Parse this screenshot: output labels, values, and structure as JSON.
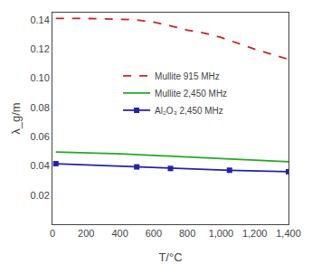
{
  "chart_data": {
    "type": "line",
    "xlabel": "T/°C",
    "ylabel": "λ_g/m",
    "series": [
      {
        "name": "Mullite 915 MHz",
        "color": "#cc2222",
        "line_style": "dashed",
        "x": [
          20,
          200,
          400,
          500,
          600,
          700,
          800,
          900,
          1000,
          1050,
          1200,
          1400
        ],
        "values": [
          0.141,
          0.141,
          0.1405,
          0.14,
          0.1385,
          0.136,
          0.133,
          0.131,
          0.128,
          0.126,
          0.12,
          0.113
        ]
      },
      {
        "name": "Mullite 2,450 MHz",
        "color": "#22aa22",
        "line_style": "solid",
        "x": [
          20,
          200,
          400,
          600,
          800,
          1000,
          1200,
          1400
        ],
        "values": [
          0.0495,
          0.049,
          0.0482,
          0.0472,
          0.046,
          0.0448,
          0.0438,
          0.0428
        ]
      },
      {
        "name": "Al₂O₃ 2,450 MHz",
        "color": "#2222aa",
        "line_style": "solid",
        "marker": "square",
        "x": [
          20,
          500,
          700,
          1050,
          1400
        ],
        "values": [
          0.0415,
          0.0393,
          0.0382,
          0.037,
          0.036
        ]
      }
    ],
    "xlim": [
      0,
      1400
    ],
    "xticks": [
      0,
      200,
      400,
      600,
      800,
      {
        "value": 1000,
        "label": "1,000"
      },
      {
        "value": 1200,
        "label": "1,200"
      },
      {
        "value": 1400,
        "label": "1,400"
      }
    ],
    "ylim": [
      0.0,
      0.145
    ],
    "yticks": [
      0.02,
      0.04,
      0.06,
      0.08,
      {
        "value": 0.1,
        "label": "0.10"
      },
      0.12,
      0.14
    ],
    "grid": false,
    "legend": "center left"
  }
}
